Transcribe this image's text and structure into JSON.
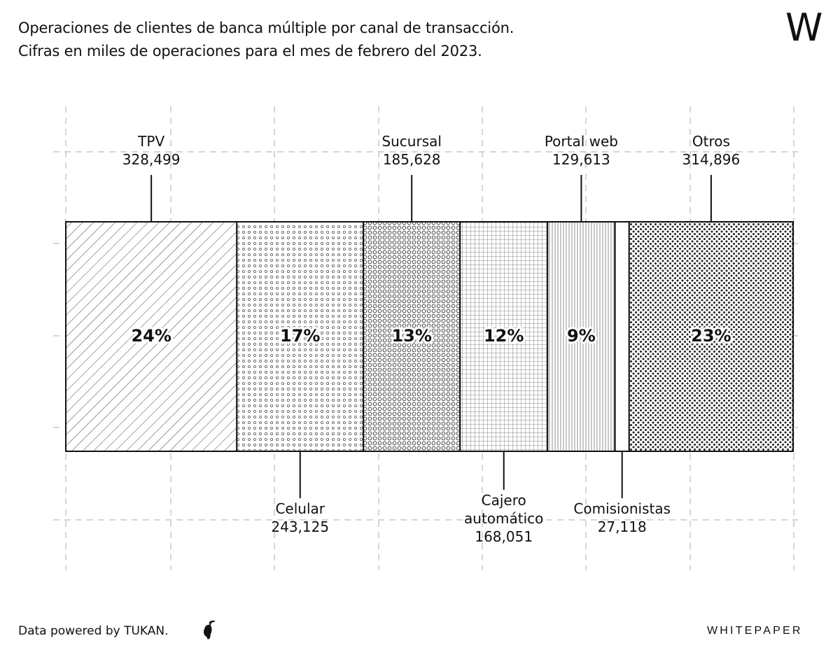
{
  "title": {
    "line1": "Operaciones de clientes de banca múltiple por canal de transacción.",
    "line2": "Cifras en miles de operaciones para el mes de febrero del 2023."
  },
  "brand": {
    "logo": "W",
    "name": "WHITEPAPER"
  },
  "footer": {
    "source": "Data powered by TUKAN."
  },
  "chart_data": {
    "type": "bar",
    "subtype": "100% stacked horizontal bar",
    "grid": true,
    "categories": [
      "TPV",
      "Celular",
      "Sucursal",
      "Cajero automático",
      "Portal web",
      "Comisionistas",
      "Otros"
    ],
    "values": [
      328499,
      243125,
      185628,
      168051,
      129613,
      27118,
      314896
    ],
    "value_labels": [
      "328,499",
      "243,125",
      "185,628",
      "168,051",
      "129,613",
      "27,118",
      "314,896"
    ],
    "percent_labels": [
      "24%",
      "17%",
      "13%",
      "12%",
      "9%",
      "",
      "23%"
    ],
    "label_positions": [
      "top",
      "bottom",
      "top",
      "bottom",
      "top",
      "bottom",
      "top"
    ],
    "patterns": [
      "diagonal",
      "small-circles",
      "circles",
      "grid",
      "vertical-lines",
      "none",
      "dots"
    ]
  }
}
